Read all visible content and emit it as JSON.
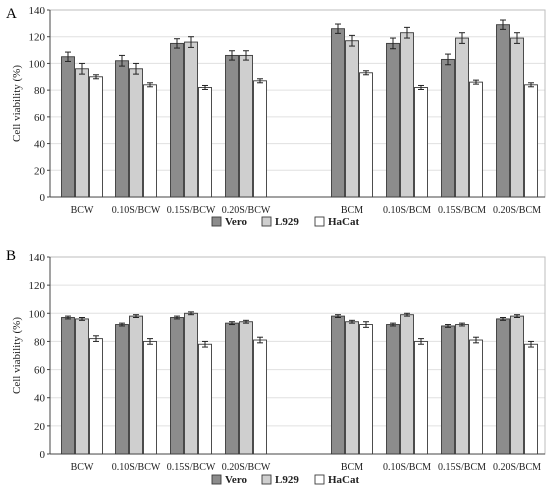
{
  "chart_data": [
    {
      "panel": "A",
      "type": "bar",
      "ylabel": "Cell viability (%)",
      "ylim": [
        0,
        140
      ],
      "yticks": [
        0,
        20,
        40,
        60,
        80,
        100,
        120,
        140
      ],
      "grid": true,
      "legend_position": "bottom",
      "categories": [
        "BCW",
        "0.10S/BCW",
        "0.15S/BCW",
        "0.20S/BCW",
        "BCM",
        "0.10S/BCM",
        "0.15S/BCM",
        "0.20S/BCM"
      ],
      "series": [
        {
          "name": "Vero",
          "color": "#8c8c8c",
          "values": [
            105,
            102,
            115,
            106,
            126,
            115,
            103,
            129
          ],
          "errors": [
            3.5,
            4,
            3.5,
            3.5,
            3.5,
            4,
            4,
            3.5
          ]
        },
        {
          "name": "L929",
          "color": "#cfcfcf",
          "values": [
            96,
            96,
            116,
            106,
            117,
            123,
            119,
            119
          ],
          "errors": [
            4,
            4,
            4,
            3.5,
            4,
            4,
            4,
            4
          ]
        },
        {
          "name": "HaCat",
          "color": "#ffffff",
          "values": [
            90,
            84,
            82,
            87,
            93,
            82,
            86,
            84
          ],
          "errors": [
            1.5,
            1.5,
            1.5,
            1.5,
            1.5,
            1.5,
            1.5,
            1.5
          ]
        }
      ]
    },
    {
      "panel": "B",
      "type": "bar",
      "ylabel": "Cell viability (%)",
      "ylim": [
        0,
        140
      ],
      "yticks": [
        0,
        20,
        40,
        60,
        80,
        100,
        120,
        140
      ],
      "grid": true,
      "legend_position": "bottom",
      "categories": [
        "BCW",
        "0.10S/BCW",
        "0.15S/BCW",
        "0.20S/BCW",
        "BCM",
        "0.10S/BCM",
        "0.15S/BCM",
        "0.20S/BCM"
      ],
      "series": [
        {
          "name": "Vero",
          "color": "#8c8c8c",
          "values": [
            97,
            92,
            97,
            93,
            98,
            92,
            91,
            96
          ],
          "errors": [
            1,
            1,
            1,
            1,
            1,
            1,
            1,
            1
          ]
        },
        {
          "name": "L929",
          "color": "#cfcfcf",
          "values": [
            96,
            98,
            100,
            94,
            94,
            99,
            92,
            98
          ],
          "errors": [
            1,
            1,
            1,
            1,
            1,
            1,
            1,
            1
          ]
        },
        {
          "name": "HaCat",
          "color": "#ffffff",
          "values": [
            82,
            80,
            78,
            81,
            92,
            80,
            81,
            78
          ],
          "errors": [
            2,
            2,
            2,
            2,
            2,
            2,
            2,
            2
          ]
        }
      ]
    }
  ]
}
